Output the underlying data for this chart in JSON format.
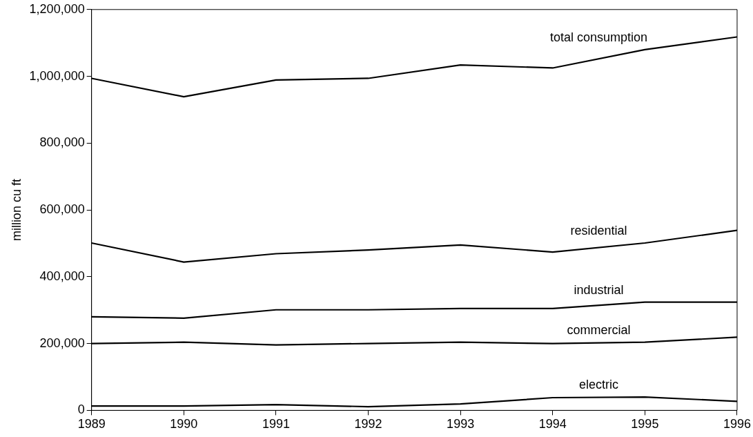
{
  "chart_data": {
    "type": "line",
    "ylabel": "million cu ft",
    "x": [
      1989,
      1990,
      1991,
      1992,
      1993,
      1994,
      1995,
      1996
    ],
    "xlim": [
      1989,
      1996
    ],
    "xticks": [
      1989,
      1990,
      1991,
      1992,
      1993,
      1994,
      1995,
      1996
    ],
    "ylim": [
      0,
      1200000
    ],
    "yticks": [
      0,
      {
        "value": 200000,
        "label": "200,000"
      },
      {
        "value": 400000,
        "label": "400,000"
      },
      {
        "value": 600000,
        "label": "600,000"
      },
      {
        "value": 800000,
        "label": "800,000"
      },
      {
        "value": 1000000,
        "label": "1,000,000"
      },
      {
        "value": 1200000,
        "label": "1,200,000"
      }
    ],
    "grid": false,
    "legend": false,
    "marker": "none",
    "line_style": "solid",
    "series": [
      {
        "name": "total consumption",
        "color": "#000000",
        "values": [
          994000,
          939000,
          989000,
          994000,
          1034000,
          1025000,
          1080000,
          1118000
        ]
      },
      {
        "name": "residential",
        "color": "#000000",
        "values": [
          501000,
          444000,
          469000,
          480000,
          495000,
          474000,
          501000,
          539000
        ]
      },
      {
        "name": "industrial",
        "color": "#000000",
        "values": [
          280000,
          276000,
          301000,
          301000,
          305000,
          305000,
          324000,
          324000
        ]
      },
      {
        "name": "commercial",
        "color": "#000000",
        "values": [
          200000,
          204000,
          196000,
          200000,
          204000,
          200000,
          204000,
          219000
        ]
      },
      {
        "name": "electric",
        "color": "#000000",
        "values": [
          13000,
          13000,
          17000,
          11000,
          19000,
          38000,
          40000,
          27000
        ]
      }
    ]
  }
}
